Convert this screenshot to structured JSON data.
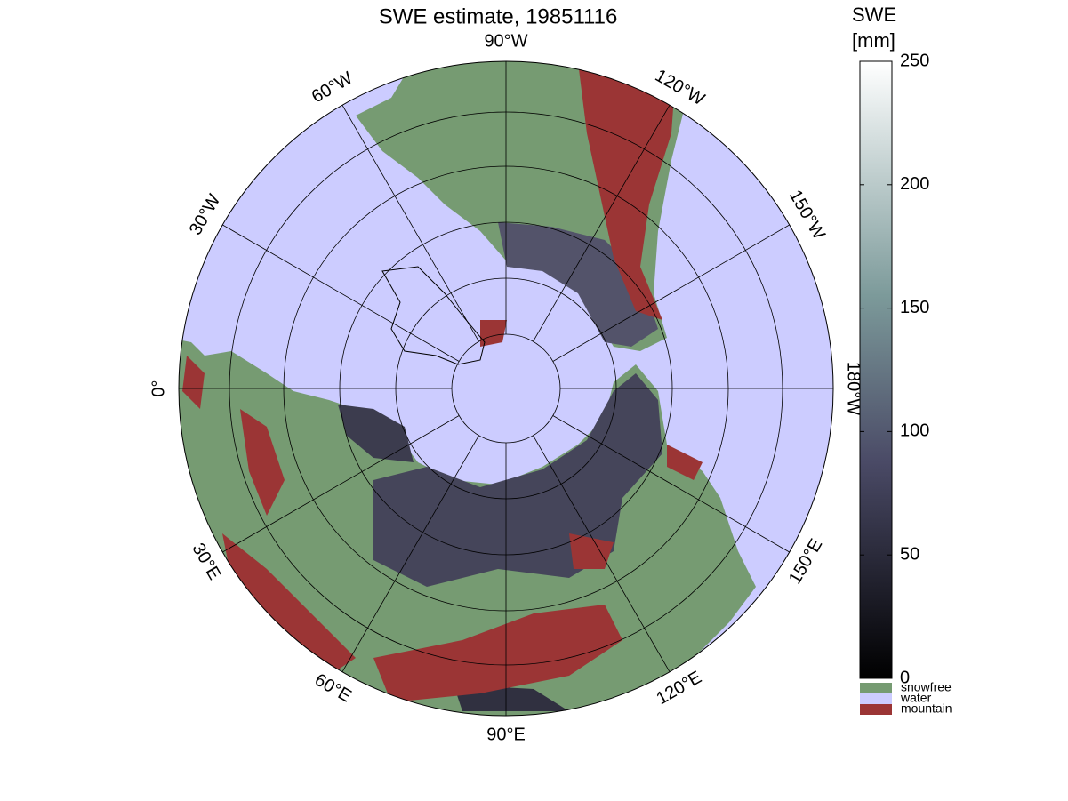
{
  "title": "SWE estimate, 19851116",
  "longitude_labels": [
    "90°W",
    "120°W",
    "150°W",
    "180°W",
    "150°E",
    "120°E",
    "90°E",
    "60°E",
    "30°E",
    "0°",
    "30°W",
    "60°W"
  ],
  "colorbar": {
    "title": [
      "SWE",
      "[mm]"
    ],
    "lim": [
      0,
      250
    ],
    "ticks": [
      0,
      50,
      100,
      150,
      200,
      250
    ]
  },
  "legend": [
    {
      "label": "snowfree",
      "color": "#769b72"
    },
    {
      "label": "water",
      "color": "#ccccff"
    },
    {
      "label": "mountain",
      "color": "#9b3535"
    }
  ]
}
